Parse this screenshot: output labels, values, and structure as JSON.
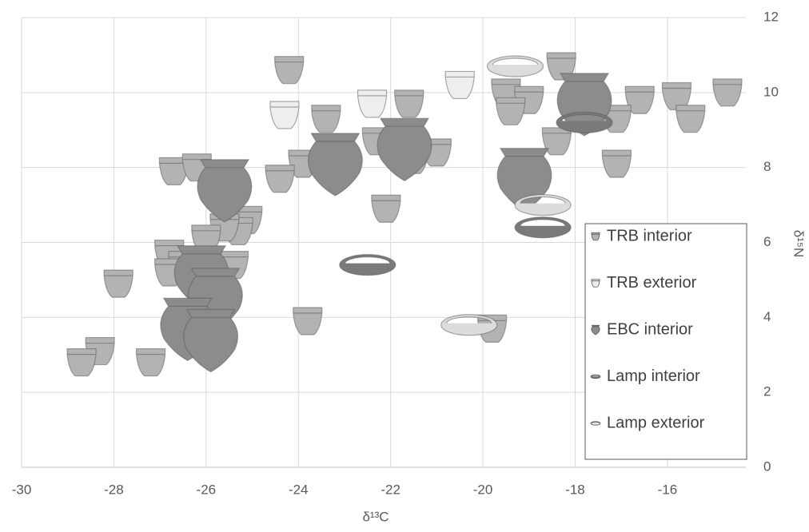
{
  "chart_data": {
    "type": "scatter",
    "x_label": "δ¹³C",
    "y_label": "δ¹⁵N",
    "xlim": [
      -30,
      -14.3
    ],
    "xticks": [
      -30,
      -28,
      -26,
      -24,
      -22,
      -20,
      -18,
      -16
    ],
    "ylim": [
      0,
      12
    ],
    "yticks": [
      0,
      2,
      4,
      6,
      8,
      10,
      12
    ],
    "grid": true,
    "legend": "right",
    "series": [
      {
        "name": "TRB interior",
        "color": "#b3b3b3",
        "marker": "cup",
        "x": [
          -24.2,
          -18.3,
          -19.5,
          -19.0,
          -19.4,
          -23.4,
          -21.6,
          -16.6,
          -15.8,
          -14.7,
          -17.1,
          -15.5,
          -18.4,
          -22.3,
          -21.0,
          -21.5,
          -17.1,
          -23.9,
          -24.4,
          -26.7,
          -26.2,
          -22.1,
          -25.1,
          -25.3,
          -25.6,
          -26.0,
          -26.8,
          -26.5,
          -26.8,
          -25.4,
          -27.9,
          -23.8,
          -19.8,
          -28.3,
          -28.7,
          -27.2
        ],
        "y": [
          10.6,
          10.7,
          10.0,
          9.8,
          9.5,
          9.3,
          9.7,
          9.8,
          9.9,
          10.0,
          9.3,
          9.3,
          8.7,
          8.7,
          8.4,
          8.2,
          8.1,
          8.1,
          7.7,
          7.9,
          8.0,
          6.9,
          6.6,
          6.3,
          6.4,
          6.1,
          5.7,
          5.4,
          5.2,
          5.4,
          4.9,
          3.9,
          3.7,
          3.1,
          2.8,
          2.8
        ]
      },
      {
        "name": "TRB exterior",
        "color": "#eeeeee",
        "marker": "cup",
        "x": [
          -24.3,
          -22.4,
          -20.5
        ],
        "y": [
          9.4,
          9.7,
          10.2
        ]
      },
      {
        "name": "EBC interior",
        "color": "#8c8c8c",
        "marker": "pot",
        "x": [
          -25.6,
          -23.2,
          -21.7,
          -19.1,
          -17.8,
          -26.1,
          -25.8,
          -26.4,
          -25.9
        ],
        "y": [
          7.4,
          8.1,
          8.5,
          7.7,
          9.7,
          5.1,
          4.5,
          3.7,
          3.4
        ]
      },
      {
        "name": "Lamp interior",
        "color": "#7a7a7a",
        "marker": "dish",
        "x": [
          -22.5,
          -18.7,
          -17.8
        ],
        "y": [
          5.4,
          6.4,
          9.2
        ]
      },
      {
        "name": "Lamp exterior",
        "color": "#dcdcdc",
        "marker": "dish",
        "x": [
          -19.3,
          -18.7,
          -20.3
        ],
        "y": [
          10.7,
          7.0,
          3.8
        ]
      }
    ]
  }
}
